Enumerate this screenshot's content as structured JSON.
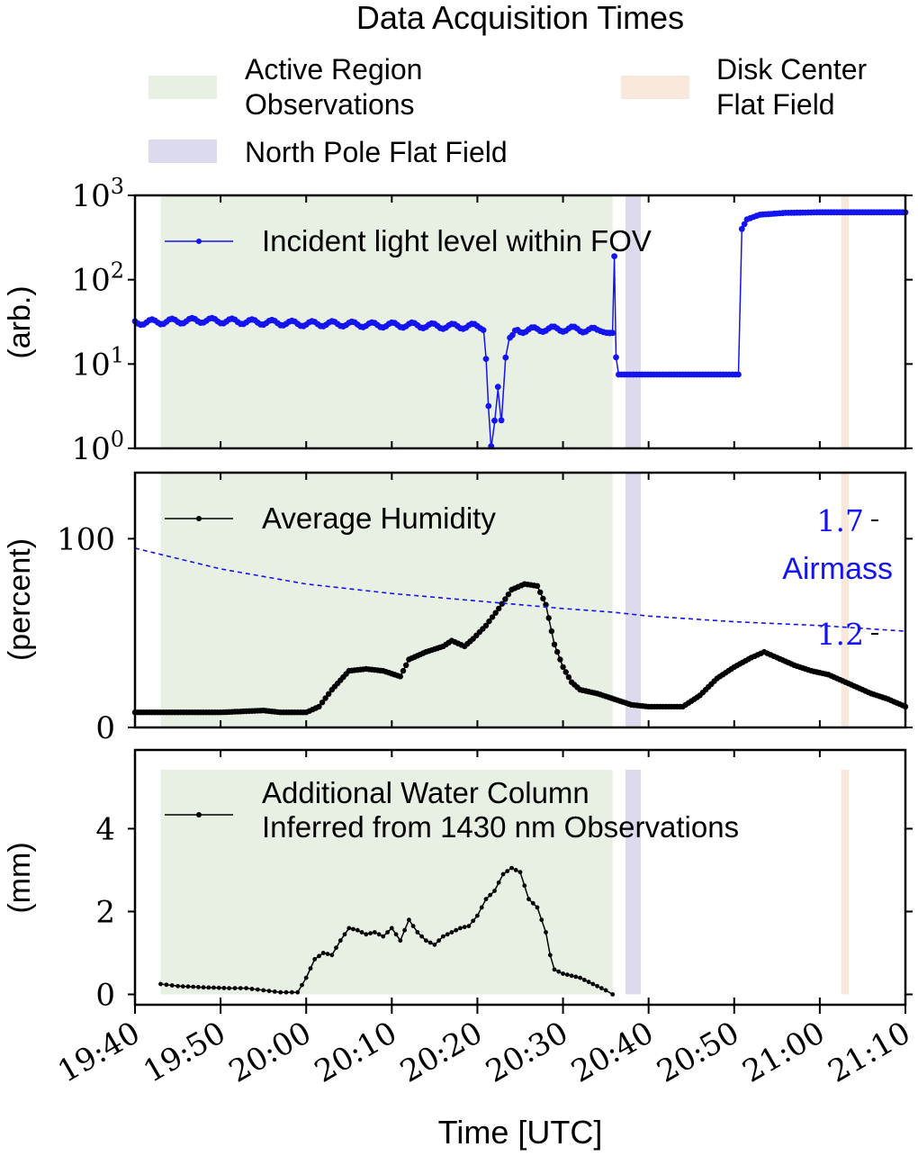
{
  "figure": {
    "title": "Data Acquisition Times",
    "xlabel": "Time [UTC]",
    "x_ticks": [
      "19:40",
      "19:50",
      "20:00",
      "20:10",
      "20:20",
      "20:30",
      "20:40",
      "20:50",
      "21:00",
      "21:10"
    ],
    "legend": [
      {
        "label_lines": [
          "Active Region",
          "Observations"
        ],
        "color": "#e8efe3"
      },
      {
        "label_lines": [
          "Disk Center",
          "Flat Field"
        ],
        "color": "#f7e8db"
      },
      {
        "label_lines": [
          "North Pole Flat Field"
        ],
        "color": "#dcdbee"
      }
    ]
  },
  "chart_data": [
    {
      "type": "line",
      "title": "",
      "xlabel": "Time [UTC]",
      "ylabel": "(arb.)",
      "yscale": "log",
      "ylim": [
        1,
        1000
      ],
      "y_ticks": [
        {
          "base": "10",
          "exp": "0"
        },
        {
          "base": "10",
          "exp": "1"
        },
        {
          "base": "10",
          "exp": "2"
        },
        {
          "base": "10",
          "exp": "3"
        }
      ],
      "xlim": [
        "19:40",
        "21:10"
      ],
      "spans": [
        {
          "name": "Active Region Observations",
          "start": "19:43",
          "end": "20:35.8",
          "color": "#e8efe3"
        },
        {
          "name": "North Pole Flat Field",
          "start": "20:37.3",
          "end": "20:39.1",
          "color": "#dcdbee"
        },
        {
          "name": "Disk Center Flat Field",
          "start": "21:02.5",
          "end": "21:03.4",
          "color": "#f7e8db"
        }
      ],
      "series": [
        {
          "name": "Incident light level within FOV",
          "color": "#1414f0",
          "points": [
            [
              "19:40",
              31
            ],
            [
              "19:44",
              32
            ],
            [
              "19:48",
              33
            ],
            [
              "19:52",
              32
            ],
            [
              "19:56",
              31
            ],
            [
              "20:00",
              30
            ],
            [
              "20:04",
              30
            ],
            [
              "20:08",
              29
            ],
            [
              "20:12",
              29
            ],
            [
              "20:16",
              28
            ],
            [
              "20:19",
              28
            ],
            [
              "20:20",
              28
            ],
            [
              "20:20.7",
              27
            ],
            [
              "20:21",
              12
            ],
            [
              "20:21.3",
              3
            ],
            [
              "20:21.6",
              1
            ],
            [
              "20:22",
              2
            ],
            [
              "20:22.4",
              5
            ],
            [
              "20:22.8",
              2
            ],
            [
              "20:23.3",
              12
            ],
            [
              "20:23.8",
              22
            ],
            [
              "20:25",
              25
            ],
            [
              "20:28",
              26
            ],
            [
              "20:31",
              26
            ],
            [
              "20:34",
              25
            ],
            [
              "20:35.8",
              25
            ],
            [
              "20:36",
              190
            ],
            [
              "20:36.2",
              12
            ],
            [
              "20:36.5",
              7.5
            ],
            [
              "20:42",
              7.5
            ],
            [
              "20:48",
              7.5
            ],
            [
              "20:50.5",
              7.5
            ],
            [
              "20:50.9",
              400
            ],
            [
              "20:51.5",
              520
            ],
            [
              "20:53",
              590
            ],
            [
              "20:56",
              620
            ],
            [
              "21:00",
              630
            ],
            [
              "21:05",
              630
            ],
            [
              "21:10",
              630
            ]
          ]
        }
      ]
    },
    {
      "type": "line",
      "title": "",
      "xlabel": "Time [UTC]",
      "ylabel": "(percent)",
      "ylim": [
        0,
        135
      ],
      "y_ticks": [
        "0",
        "100"
      ],
      "xlim": [
        "19:40",
        "21:10"
      ],
      "secondary_axis": {
        "label": "Airmass",
        "ticks": [
          "1.7",
          "1.2"
        ],
        "color": "#1414f0"
      },
      "series": [
        {
          "name": "Average Humidity",
          "color": "#000000",
          "points": [
            [
              "19:40",
              8
            ],
            [
              "19:45",
              8
            ],
            [
              "19:50",
              8
            ],
            [
              "19:55",
              9
            ],
            [
              "19:57",
              8
            ],
            [
              "20:00",
              8
            ],
            [
              "20:01.5",
              11
            ],
            [
              "20:03",
              20
            ],
            [
              "20:05",
              30
            ],
            [
              "20:07",
              31
            ],
            [
              "20:09",
              30
            ],
            [
              "20:11",
              27
            ],
            [
              "20:12",
              36
            ],
            [
              "20:14",
              40
            ],
            [
              "20:16",
              43
            ],
            [
              "20:17",
              46
            ],
            [
              "20:18.5",
              43
            ],
            [
              "20:19.5",
              47
            ],
            [
              "20:21",
              54
            ],
            [
              "20:22.5",
              63
            ],
            [
              "20:24",
              73
            ],
            [
              "20:25.5",
              76
            ],
            [
              "20:27",
              75
            ],
            [
              "20:28",
              65
            ],
            [
              "20:29",
              44
            ],
            [
              "20:30",
              32
            ],
            [
              "20:31",
              24
            ],
            [
              "20:32",
              20
            ],
            [
              "20:34",
              18
            ],
            [
              "20:36",
              15
            ],
            [
              "20:38",
              12
            ],
            [
              "20:40",
              11
            ],
            [
              "20:42",
              11
            ],
            [
              "20:44",
              11
            ],
            [
              "20:46",
              17
            ],
            [
              "20:48",
              26
            ],
            [
              "20:50",
              32
            ],
            [
              "20:52",
              37
            ],
            [
              "20:53.5",
              40
            ],
            [
              "20:55",
              37
            ],
            [
              "20:57",
              33
            ],
            [
              "20:59",
              30
            ],
            [
              "21:01",
              28
            ],
            [
              "21:03",
              24
            ],
            [
              "21:05",
              20
            ],
            [
              "21:06",
              18
            ],
            [
              "21:08",
              15
            ],
            [
              "21:10",
              11
            ]
          ]
        },
        {
          "name": "Airmass",
          "color": "#1414f0",
          "dashed": true,
          "points": [
            [
              "19:40",
              95
            ],
            [
              "19:50",
              84
            ],
            [
              "20:00",
              76
            ],
            [
              "20:10",
              71
            ],
            [
              "20:20",
              67
            ],
            [
              "20:30",
              63
            ],
            [
              "20:36",
              61
            ],
            [
              "20:40",
              59
            ],
            [
              "20:50",
              56
            ],
            [
              "21:00",
              54
            ],
            [
              "21:10",
              51
            ]
          ]
        }
      ]
    },
    {
      "type": "line",
      "title": "",
      "xlabel": "Time [UTC]",
      "ylabel": "(mm)",
      "ylim": [
        -0.25,
        5.9
      ],
      "y_ticks": [
        "0",
        "2",
        "4"
      ],
      "xlim": [
        "19:40",
        "21:10"
      ],
      "series": [
        {
          "name": "Additional Water Column Inferred from 1430 nm Observations",
          "label_lines": [
            "Additional Water Column",
            "Inferred from 1430 nm Observations"
          ],
          "color": "#000000",
          "points": [
            [
              "19:43",
              0.25
            ],
            [
              "19:45",
              0.2
            ],
            [
              "19:48",
              0.17
            ],
            [
              "19:51",
              0.15
            ],
            [
              "19:53",
              0.15
            ],
            [
              "19:55",
              0.1
            ],
            [
              "19:57",
              0.05
            ],
            [
              "19:59",
              0.05
            ],
            [
              "20:00",
              0.4
            ],
            [
              "20:01",
              0.85
            ],
            [
              "20:02",
              1.0
            ],
            [
              "20:03",
              0.95
            ],
            [
              "20:04",
              1.3
            ],
            [
              "20:05",
              1.6
            ],
            [
              "20:06",
              1.55
            ],
            [
              "20:07",
              1.45
            ],
            [
              "20:08",
              1.5
            ],
            [
              "20:09",
              1.4
            ],
            [
              "20:10",
              1.6
            ],
            [
              "20:11",
              1.3
            ],
            [
              "20:12",
              1.8
            ],
            [
              "20:13",
              1.5
            ],
            [
              "20:14",
              1.3
            ],
            [
              "20:15",
              1.2
            ],
            [
              "20:16",
              1.4
            ],
            [
              "20:17",
              1.5
            ],
            [
              "20:18",
              1.6
            ],
            [
              "20:19",
              1.65
            ],
            [
              "20:20",
              1.9
            ],
            [
              "20:21",
              2.3
            ],
            [
              "20:22",
              2.5
            ],
            [
              "20:23",
              2.9
            ],
            [
              "20:24",
              3.05
            ],
            [
              "20:25",
              2.95
            ],
            [
              "20:26",
              2.3
            ],
            [
              "20:27",
              2.1
            ],
            [
              "20:28",
              1.5
            ],
            [
              "20:28.5",
              0.95
            ],
            [
              "20:29",
              0.6
            ],
            [
              "20:30",
              0.5
            ],
            [
              "20:31",
              0.45
            ],
            [
              "20:32",
              0.4
            ],
            [
              "20:33",
              0.3
            ],
            [
              "20:34",
              0.2
            ],
            [
              "20:35",
              0.1
            ],
            [
              "20:35.8",
              0.0
            ]
          ]
        }
      ]
    }
  ]
}
